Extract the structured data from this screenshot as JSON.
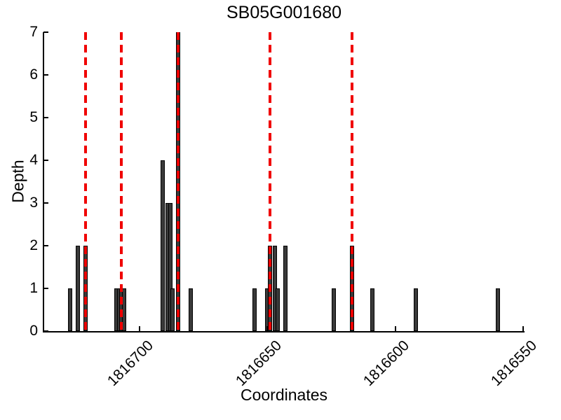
{
  "figure": {
    "title": "SB05G001680",
    "xlabel": "Coordinates",
    "ylabel": "Depth"
  },
  "colors": {
    "background": "#ffffff",
    "bar_fill": "#3a3a3a",
    "bar_edge": "#000000",
    "marker_line": "#f00000",
    "axis": "#000000"
  },
  "chart_data": {
    "type": "bar",
    "title": "SB05G001680",
    "xlabel": "Coordinates",
    "ylabel": "Depth",
    "x_axis_reversed": true,
    "xlim": [
      1816737.5,
      1816549.5
    ],
    "ylim": [
      0,
      7
    ],
    "x_ticks": [
      1816700,
      1816650,
      1816600,
      1816550
    ],
    "y_ticks": [
      0,
      1,
      2,
      3,
      4,
      5,
      6,
      7
    ],
    "grid": false,
    "legend": false,
    "bars": [
      {
        "coordinate": 1816727,
        "depth": 1
      },
      {
        "coordinate": 1816724,
        "depth": 2
      },
      {
        "coordinate": 1816721,
        "depth": 2
      },
      {
        "coordinate": 1816709,
        "depth": 1
      },
      {
        "coordinate": 1816708,
        "depth": 1
      },
      {
        "coordinate": 1816707,
        "depth": 1
      },
      {
        "coordinate": 1816706,
        "depth": 1
      },
      {
        "coordinate": 1816691,
        "depth": 4
      },
      {
        "coordinate": 1816689,
        "depth": 3
      },
      {
        "coordinate": 1816688,
        "depth": 3
      },
      {
        "coordinate": 1816687,
        "depth": 1
      },
      {
        "coordinate": 1816685,
        "depth": 7
      },
      {
        "coordinate": 1816680,
        "depth": 1
      },
      {
        "coordinate": 1816655,
        "depth": 1
      },
      {
        "coordinate": 1816650,
        "depth": 1
      },
      {
        "coordinate": 1816649,
        "depth": 2
      },
      {
        "coordinate": 1816647,
        "depth": 2
      },
      {
        "coordinate": 1816646,
        "depth": 1
      },
      {
        "coordinate": 1816643,
        "depth": 2
      },
      {
        "coordinate": 1816624,
        "depth": 1
      },
      {
        "coordinate": 1816617,
        "depth": 2
      },
      {
        "coordinate": 1816609,
        "depth": 1
      },
      {
        "coordinate": 1816592,
        "depth": 1
      },
      {
        "coordinate": 1816560,
        "depth": 1
      }
    ],
    "marker_lines_x": [
      1816721,
      1816707,
      1816685,
      1816649,
      1816617
    ],
    "marker_line_style": "dashed"
  }
}
